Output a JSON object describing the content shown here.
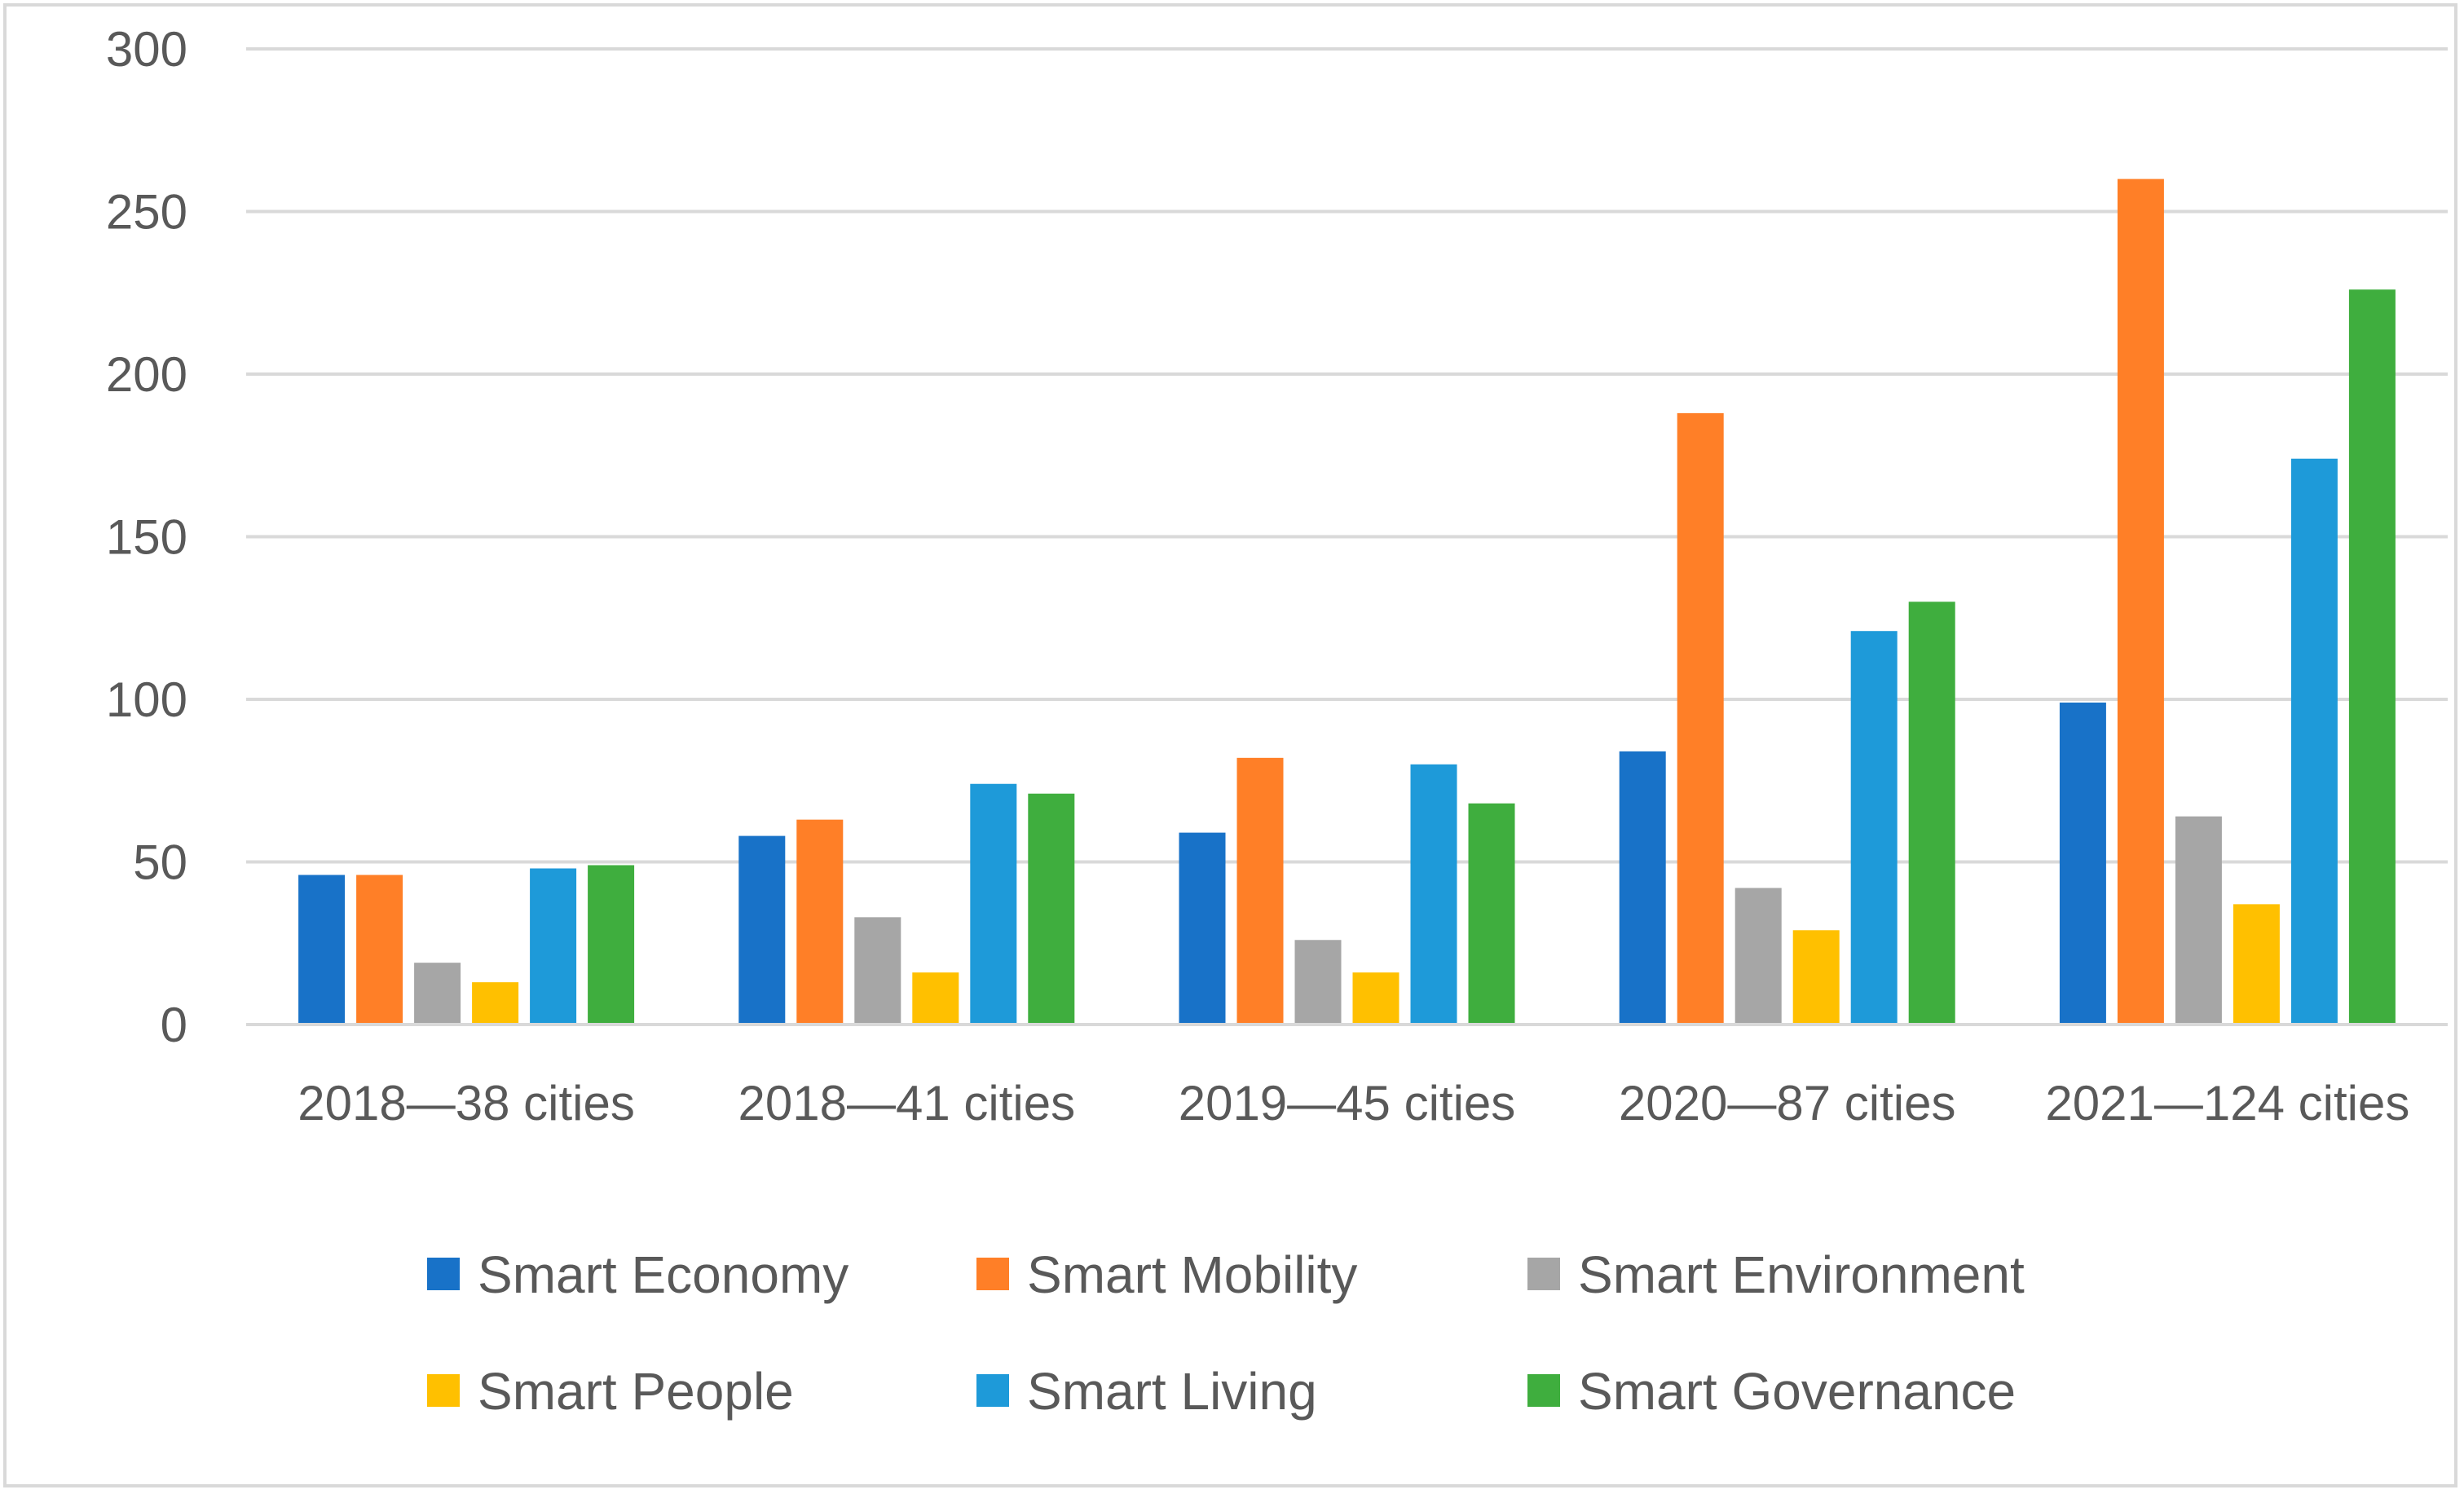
{
  "chart_data": {
    "type": "bar",
    "title": "",
    "xlabel": "",
    "ylabel": "",
    "ylim": [
      0,
      300
    ],
    "yticks": [
      0,
      50,
      100,
      150,
      200,
      250,
      300
    ],
    "grid": true,
    "legend_position": "bottom",
    "categories": [
      "2018—38 cities",
      "2018—41 cities",
      "2019—45 cities",
      "2020—87 cities",
      "2021—124 cities"
    ],
    "series": [
      {
        "name": "Smart Economy",
        "color": "#1872c8",
        "values": [
          46,
          58,
          59,
          84,
          99
        ]
      },
      {
        "name": "Smart Mobility",
        "color": "#ff7f27",
        "values": [
          46,
          63,
          82,
          188,
          260
        ]
      },
      {
        "name": "Smart Environment",
        "color": "#a6a6a6",
        "values": [
          19,
          33,
          26,
          42,
          64
        ]
      },
      {
        "name": "Smart People",
        "color": "#ffc000",
        "values": [
          13,
          16,
          16,
          29,
          37
        ]
      },
      {
        "name": "Smart Living",
        "color": "#1e9ad9",
        "values": [
          48,
          74,
          80,
          121,
          174
        ]
      },
      {
        "name": "Smart Governance",
        "color": "#3fae3e",
        "values": [
          49,
          71,
          68,
          130,
          226
        ]
      }
    ]
  }
}
